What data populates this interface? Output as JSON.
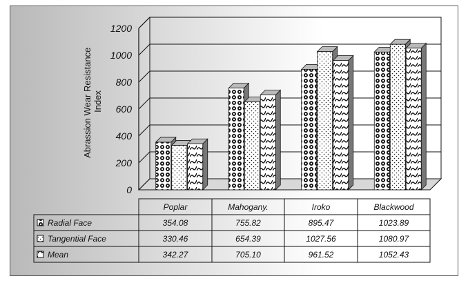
{
  "chart_data": {
    "type": "bar",
    "ylabel": "Abrassion Wear Resistance Index",
    "ylim": [
      0,
      1200
    ],
    "yticks": [
      0,
      200,
      400,
      600,
      800,
      1000,
      1200
    ],
    "categories": [
      "Poplar",
      "Mahogany.",
      "Iroko",
      "Blackwood"
    ],
    "series": [
      {
        "name": "Radial Face",
        "values": [
          354.08,
          755.82,
          895.47,
          1023.89
        ],
        "value_labels": [
          "354.08",
          "755.82",
          "895.47",
          "1023.89"
        ],
        "pattern": "circles"
      },
      {
        "name": "Tangential Face",
        "values": [
          330.46,
          654.39,
          1027.56,
          1080.97
        ],
        "value_labels": [
          "330.46",
          "654.39",
          "1027.56",
          "1080.97"
        ],
        "pattern": "dots"
      },
      {
        "name": "Mean",
        "values": [
          342.27,
          705.1,
          961.52,
          1052.43
        ],
        "value_labels": [
          "342.27",
          "705.10",
          "961.52",
          "1052.43"
        ],
        "pattern": "waves"
      }
    ],
    "grid": true,
    "legend": "data table"
  }
}
